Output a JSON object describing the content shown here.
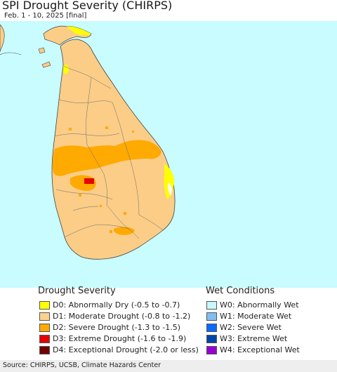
{
  "title": "SPI Drought Severity (CHIRPS)",
  "subtitle": "Feb. 1 - 10, 2025 [final]",
  "colors": {
    "ocean": "#c8fcfe",
    "land": "#fbcd87",
    "d0": "#ffff00",
    "d1": "#fcd28b",
    "d2": "#ffaa00",
    "d3": "#e60000",
    "d4": "#730000",
    "w0": "#c8f8fe",
    "w1": "#82bef2",
    "w2": "#0a6cff",
    "w3": "#0046a8",
    "w4": "#9600d2"
  },
  "legend": {
    "drought_title": "Drought Severity",
    "wet_title": "Wet Conditions",
    "drought_items": [
      {
        "label": "D0: Abnormally Dry (-0.5 to -0.7)",
        "color": "#ffff00"
      },
      {
        "label": "D1: Moderate Drought (-0.8 to -1.2)",
        "color": "#fcd28b"
      },
      {
        "label": "D2: Severe Drought (-1.3 to -1.5)",
        "color": "#ffaa00"
      },
      {
        "label": "D3: Extreme Drought (-1.6 to -1.9)",
        "color": "#e60000"
      },
      {
        "label": "D4: Exceptional Drought (-2.0 or less)",
        "color": "#730000"
      }
    ],
    "wet_items": [
      {
        "label": "W0: Abnormally Wet",
        "color": "#c8f8fe"
      },
      {
        "label": "W1: Moderate Wet",
        "color": "#82bef2"
      },
      {
        "label": "W2: Severe Wet",
        "color": "#0a6cff"
      },
      {
        "label": "W3: Extreme Wet",
        "color": "#0046a8"
      },
      {
        "label": "W4: Exceptional Wet",
        "color": "#9600d2"
      }
    ]
  },
  "footer": "Source: CHIRPS, UCSB, Climate Hazards Center"
}
